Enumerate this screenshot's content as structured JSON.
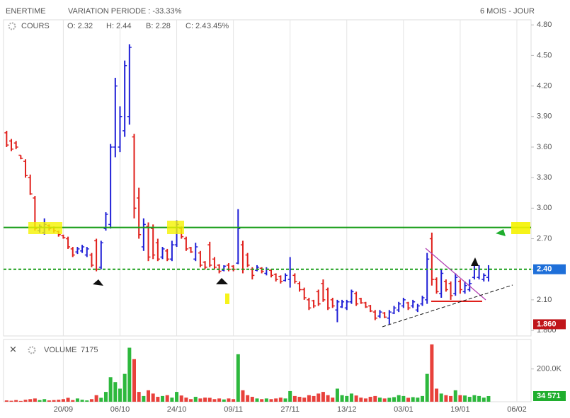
{
  "header": {
    "name": "ENERTIME",
    "variation": "VARIATION PERIODE : -33.33%",
    "period": "6 MOIS - JOUR"
  },
  "chart_data": [
    {
      "type": "ohlc",
      "legend": "COURS",
      "quote": {
        "open": "O: 2.32",
        "high": "H: 2.44",
        "low": "B: 2.28",
        "close": "C: 2.4",
        "change": "3.45%"
      },
      "up_color": "#1f1fd6",
      "down_color": "#e0201c",
      "change_color": "#1a9e1a",
      "open": [
        3.74,
        3.66,
        3.64,
        3.52,
        3.46,
        3.3,
        3.1,
        2.78,
        2.76,
        2.83,
        2.81,
        2.77,
        2.73,
        2.7,
        2.6,
        2.57,
        2.58,
        2.54,
        2.54,
        2.68,
        2.42,
        2.8,
        2.84,
        3.6,
        3.6,
        3.76,
        3.9,
        3.7,
        3.1,
        2.62,
        2.82,
        2.8,
        2.66,
        2.52,
        2.58,
        2.5,
        2.64,
        2.8,
        2.7,
        2.61,
        2.5,
        2.56,
        2.47,
        2.64,
        2.5,
        2.44,
        2.39,
        2.44,
        2.43,
        2.46,
        2.64,
        2.54,
        2.4,
        2.39,
        2.41,
        2.36,
        2.39,
        2.35,
        2.33,
        2.29,
        2.3,
        2.34,
        2.26,
        2.2,
        2.1,
        2.09,
        2.18,
        2.26,
        2.2,
        2.1,
        2.0,
        2.03,
        2.02,
        2.08,
        2.16,
        2.11,
        2.07,
        2.04,
        1.98,
        1.94,
        1.97,
        1.92,
        1.97,
        2.0,
        2.04,
        2.07,
        2.04,
        2.0,
        2.06,
        2.1,
        2.7,
        2.3,
        2.16,
        2.28,
        2.26,
        2.16,
        2.28,
        2.18,
        2.2,
        2.32,
        2.32,
        2.3,
        2.32
      ],
      "high": [
        3.76,
        3.68,
        3.66,
        3.52,
        3.48,
        3.33,
        3.12,
        2.84,
        2.9,
        2.84,
        2.82,
        2.78,
        2.74,
        2.72,
        2.62,
        2.62,
        2.64,
        2.62,
        2.56,
        2.7,
        2.68,
        2.96,
        3.63,
        4.28,
        4.0,
        4.45,
        4.61,
        3.73,
        3.2,
        2.9,
        2.86,
        2.84,
        2.7,
        2.62,
        2.6,
        2.68,
        2.88,
        2.82,
        2.72,
        2.62,
        2.66,
        2.58,
        2.48,
        2.67,
        2.52,
        2.45,
        2.44,
        2.46,
        2.44,
        2.99,
        2.68,
        2.56,
        2.42,
        2.44,
        2.42,
        2.42,
        2.4,
        2.36,
        2.34,
        2.36,
        2.52,
        2.36,
        2.28,
        2.22,
        2.12,
        2.1,
        2.2,
        2.3,
        2.22,
        2.12,
        2.1,
        2.1,
        2.1,
        2.2,
        2.18,
        2.12,
        2.08,
        2.05,
        2.0,
        2.0,
        1.98,
        2.0,
        2.04,
        2.08,
        2.12,
        2.08,
        2.1,
        2.06,
        2.14,
        2.56,
        2.76,
        2.32,
        2.4,
        2.3,
        2.28,
        2.36,
        2.3,
        2.28,
        2.3,
        2.44,
        2.44,
        2.36,
        2.44
      ],
      "low": [
        3.6,
        3.56,
        3.58,
        3.48,
        3.3,
        3.13,
        2.78,
        2.76,
        2.74,
        2.78,
        2.76,
        2.72,
        2.7,
        2.6,
        2.52,
        2.55,
        2.56,
        2.52,
        2.42,
        2.38,
        2.4,
        2.78,
        2.8,
        3.5,
        3.55,
        3.7,
        3.82,
        2.9,
        2.7,
        2.58,
        2.48,
        2.5,
        2.48,
        2.5,
        2.48,
        2.48,
        2.62,
        2.7,
        2.58,
        2.56,
        2.48,
        2.42,
        2.4,
        2.42,
        2.4,
        2.36,
        2.38,
        2.38,
        2.38,
        2.45,
        2.36,
        2.42,
        2.3,
        2.38,
        2.36,
        2.34,
        2.32,
        2.28,
        2.26,
        2.28,
        2.22,
        2.26,
        2.18,
        2.1,
        2.0,
        2.02,
        2.04,
        2.08,
        2.0,
        2.02,
        1.88,
        2.02,
        2.0,
        2.06,
        2.04,
        2.06,
        2.02,
        1.98,
        1.9,
        1.92,
        1.92,
        1.86,
        1.96,
        1.98,
        2.02,
        2.0,
        2.02,
        1.98,
        2.04,
        2.06,
        2.24,
        2.16,
        2.12,
        2.18,
        2.1,
        2.14,
        2.16,
        2.16,
        2.18,
        2.3,
        2.3,
        2.28,
        2.28
      ],
      "close": [
        3.62,
        3.58,
        3.6,
        3.49,
        3.32,
        3.14,
        2.8,
        2.82,
        2.84,
        2.8,
        2.78,
        2.74,
        2.71,
        2.62,
        2.54,
        2.6,
        2.62,
        2.6,
        2.44,
        2.4,
        2.66,
        2.94,
        3.6,
        4.2,
        3.9,
        4.4,
        4.58,
        3.0,
        2.74,
        2.84,
        2.52,
        2.54,
        2.5,
        2.6,
        2.5,
        2.64,
        2.84,
        2.72,
        2.6,
        2.57,
        2.62,
        2.44,
        2.42,
        2.44,
        2.42,
        2.38,
        2.43,
        2.4,
        2.4,
        2.8,
        2.4,
        2.44,
        2.34,
        2.42,
        2.38,
        2.4,
        2.34,
        2.3,
        2.28,
        2.34,
        2.4,
        2.28,
        2.2,
        2.12,
        2.02,
        2.04,
        2.06,
        2.1,
        2.02,
        2.04,
        2.08,
        2.08,
        2.08,
        2.18,
        2.06,
        2.07,
        2.03,
        1.99,
        1.92,
        1.98,
        1.93,
        1.98,
        2.02,
        2.06,
        2.1,
        2.02,
        2.08,
        2.04,
        2.12,
        2.5,
        2.3,
        2.18,
        2.36,
        2.2,
        2.14,
        2.32,
        2.2,
        2.24,
        2.26,
        2.4,
        2.4,
        2.34,
        2.4
      ],
      "xlim": [
        -0.2,
        111
      ],
      "xticks": [
        {
          "value": 12,
          "label": "20/09"
        },
        {
          "value": 24,
          "label": "06/10"
        },
        {
          "value": 36,
          "label": "24/10"
        },
        {
          "value": 48,
          "label": "09/11"
        },
        {
          "value": 60,
          "label": "27/11"
        },
        {
          "value": 72,
          "label": "13/12"
        },
        {
          "value": 84,
          "label": "03/01"
        },
        {
          "value": 96,
          "label": "19/01"
        },
        {
          "value": 108,
          "label": "06/02"
        }
      ],
      "ylim": [
        1.745,
        4.85
      ],
      "yticks": [
        {
          "value": 4.8,
          "label": "4.80"
        },
        {
          "value": 4.5,
          "label": "4.50"
        },
        {
          "value": 4.2,
          "label": "4.20"
        },
        {
          "value": 3.9,
          "label": "3.90"
        },
        {
          "value": 3.6,
          "label": "3.60"
        },
        {
          "value": 3.3,
          "label": "3.30"
        },
        {
          "value": 3.0,
          "label": "3.00"
        },
        {
          "value": 2.7,
          "label": "2.70"
        },
        {
          "value": 2.4,
          "label": "2.40"
        },
        {
          "value": 2.1,
          "label": "2.10"
        },
        {
          "value": 1.8,
          "label": "1.800"
        }
      ],
      "grid": "x",
      "levels": [
        {
          "value": 2.81,
          "color": "#1a9e1a",
          "style": "solid"
        },
        {
          "value": 2.4,
          "color": "#1a9e1a",
          "style": "dashed"
        }
      ],
      "badges": [
        {
          "value": 2.4,
          "label": "2.40",
          "color": "#1e6fd9"
        },
        {
          "value": 1.86,
          "label": "1.860",
          "color": "#c0151a"
        }
      ]
    },
    {
      "type": "bar",
      "legend": "VOLUME",
      "legend_value": "7175",
      "up_color": "#2db83d",
      "down_color": "#e8413b",
      "values": [
        8000,
        6000,
        10000,
        5000,
        12000,
        16000,
        20000,
        10000,
        16000,
        8000,
        10000,
        12000,
        16000,
        24000,
        10000,
        20000,
        12000,
        8000,
        16000,
        40000,
        24000,
        60000,
        150000,
        120000,
        80000,
        170000,
        330000,
        260000,
        60000,
        35000,
        70000,
        50000,
        30000,
        35000,
        40000,
        25000,
        60000,
        38000,
        25000,
        16000,
        30000,
        20000,
        25000,
        24000,
        16000,
        20000,
        14000,
        20000,
        16000,
        290000,
        70000,
        40000,
        30000,
        20000,
        16000,
        20000,
        16000,
        20000,
        25000,
        20000,
        65000,
        35000,
        30000,
        25000,
        40000,
        35000,
        50000,
        60000,
        40000,
        25000,
        80000,
        40000,
        35000,
        50000,
        38000,
        25000,
        20000,
        30000,
        35000,
        25000,
        20000,
        24000,
        28000,
        40000,
        35000,
        24000,
        28000,
        25000,
        35000,
        170000,
        350000,
        80000,
        50000,
        40000,
        35000,
        70000,
        40000,
        38000,
        30000,
        40000,
        35000,
        25000,
        34571
      ],
      "ylim": [
        0,
        380000
      ],
      "yticks": [
        {
          "value": 200000,
          "label": "200.0K"
        }
      ],
      "badges": [
        {
          "value": 34571,
          "label": "34 571",
          "color": "#1fae2e"
        }
      ]
    }
  ]
}
